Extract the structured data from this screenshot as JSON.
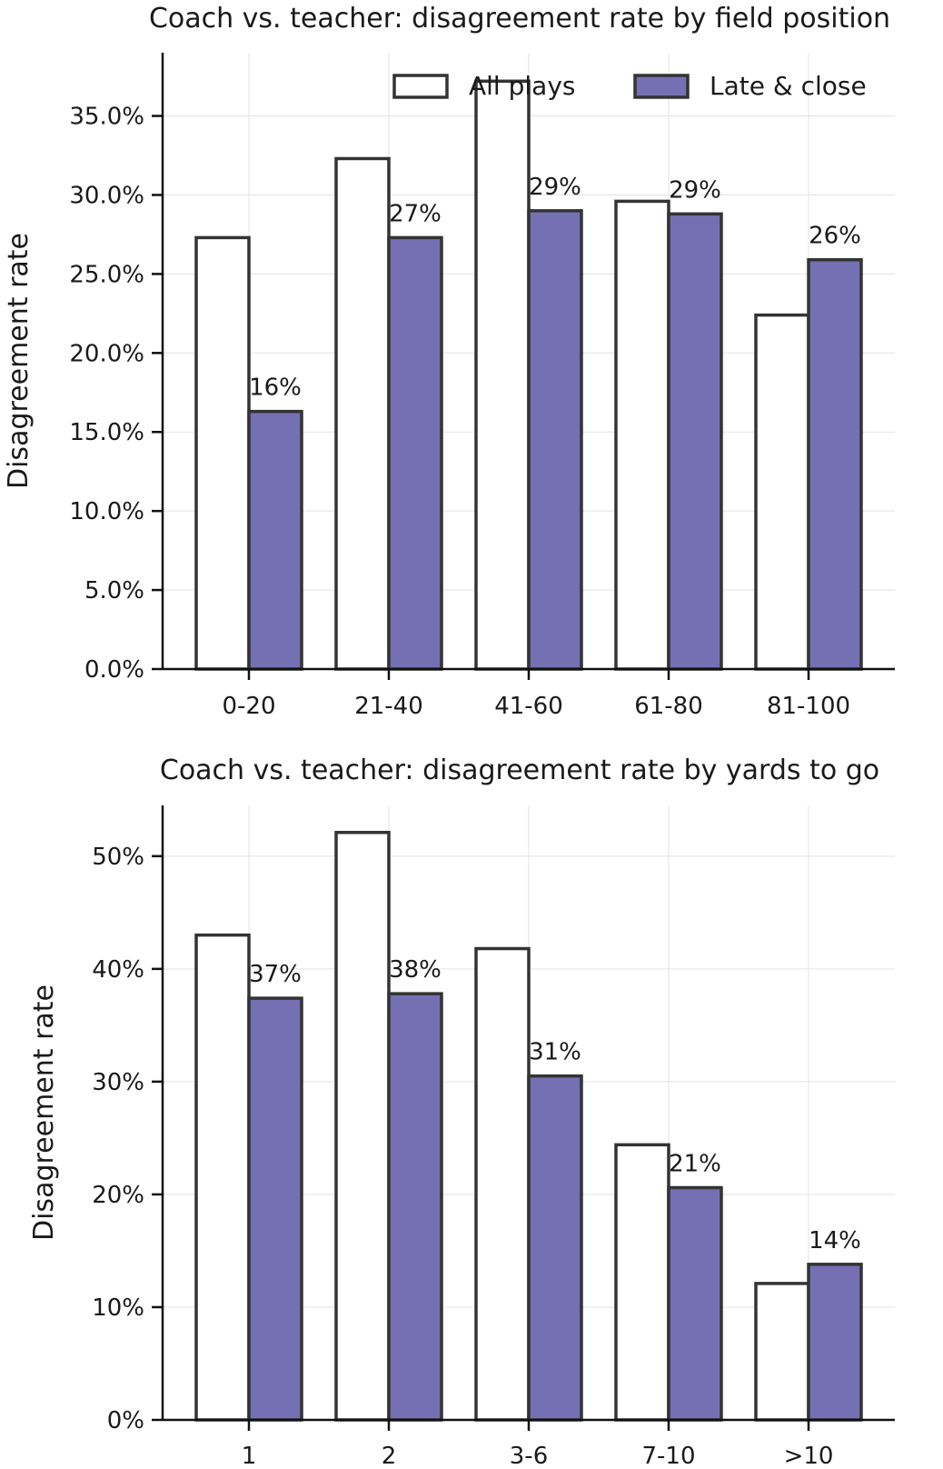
{
  "chart_data": [
    {
      "type": "bar",
      "title": "Coach vs. teacher: disagreement rate by field position",
      "xlabel": "",
      "ylabel": "Disagreement rate",
      "categories": [
        "0-20",
        "21-40",
        "41-60",
        "61-80",
        "81-100"
      ],
      "series": [
        {
          "name": "All plays",
          "values": [
            0.273,
            0.323,
            0.372,
            0.296,
            0.224
          ],
          "color": "#ffffff"
        },
        {
          "name": "Late & close",
          "values": [
            0.163,
            0.273,
            0.29,
            0.288,
            0.259
          ],
          "color": "#7570b3"
        }
      ],
      "data_labels": [
        "16%",
        "27%",
        "29%",
        "29%",
        "26%"
      ],
      "ylim": [
        0,
        0.39
      ],
      "yticks": [
        0,
        0.05,
        0.1,
        0.15,
        0.2,
        0.25,
        0.3,
        0.35
      ],
      "ytick_labels": [
        "0.0%",
        "5.0%",
        "10.0%",
        "15.0%",
        "20.0%",
        "25.0%",
        "30.0%",
        "35.0%"
      ],
      "legend_position": "top-right",
      "grid": true
    },
    {
      "type": "bar",
      "title": "Coach vs. teacher: disagreement rate by yards to go",
      "xlabel": "",
      "ylabel": "Disagreement rate",
      "categories": [
        "1",
        "2",
        "3-6",
        "7-10",
        ">10"
      ],
      "series": [
        {
          "name": "All plays",
          "values": [
            0.43,
            0.521,
            0.418,
            0.244,
            0.121
          ],
          "color": "#ffffff"
        },
        {
          "name": "Late & close",
          "values": [
            0.374,
            0.378,
            0.305,
            0.206,
            0.138
          ],
          "color": "#7570b3"
        }
      ],
      "data_labels": [
        "37%",
        "38%",
        "31%",
        "21%",
        "14%"
      ],
      "ylim": [
        0,
        0.545
      ],
      "yticks": [
        0,
        0.1,
        0.2,
        0.3,
        0.4,
        0.5
      ],
      "ytick_labels": [
        "0%",
        "10%",
        "20%",
        "30%",
        "40%",
        "50%"
      ],
      "grid": true
    }
  ]
}
